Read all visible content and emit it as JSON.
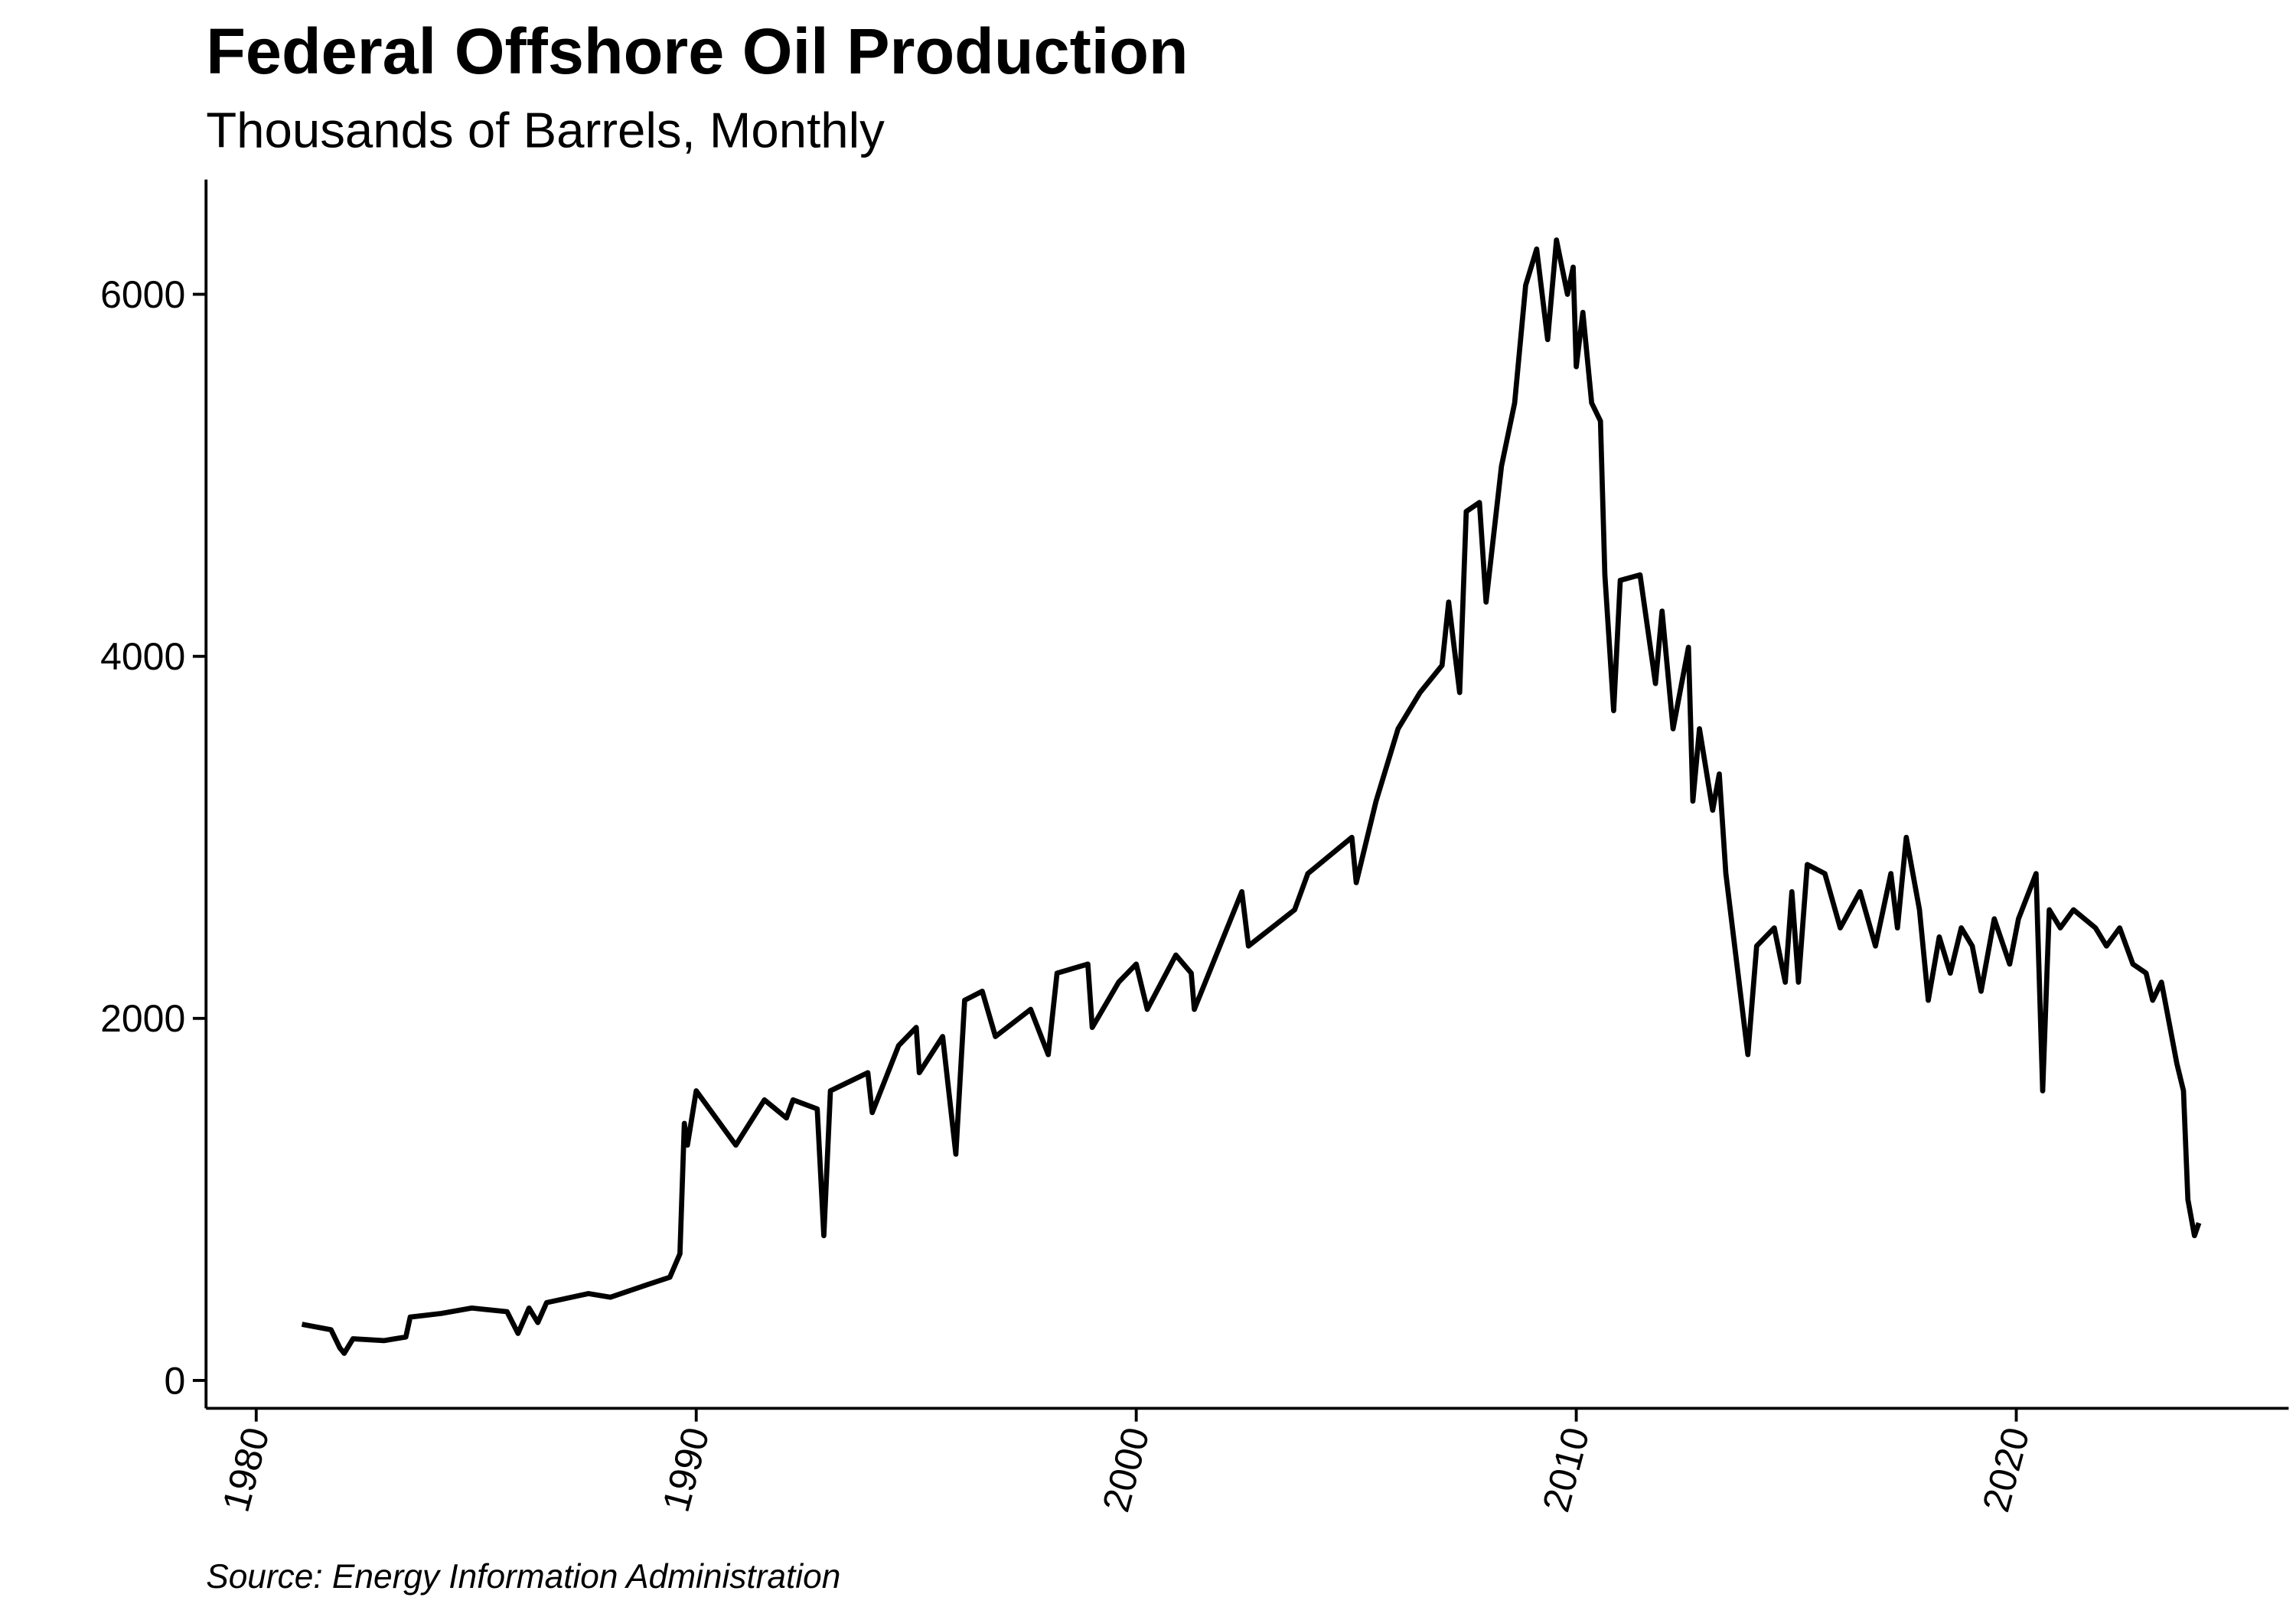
{
  "chart_data": {
    "type": "line",
    "title": "Federal Offshore Oil Production",
    "subtitle": "Thousands of Barrels, Monthly",
    "source": "Source: Energy Information Administration",
    "color": "#000000",
    "x": [
      1981.04,
      1981.7,
      1981.9,
      1982.0,
      1982.2,
      1982.9,
      1983.4,
      1983.5,
      1984.2,
      1984.9,
      1985.7,
      1985.95,
      1986.2,
      1986.4,
      1986.6,
      1987.55,
      1988.05,
      1988.9,
      1989.4,
      1989.63,
      1989.73,
      1989.8,
      1990.0,
      1990.9,
      1991.55,
      1992.05,
      1992.2,
      1992.75,
      1992.9,
      1993.05,
      1993.9,
      1994.0,
      1994.6,
      1995.0,
      1995.07,
      1995.6,
      1995.9,
      1996.1,
      1996.5,
      1996.8,
      1997.6,
      1998.0,
      1998.2,
      1998.9,
      1999.0,
      1999.6,
      2000.0,
      2000.25,
      2000.9,
      2001.25,
      2001.32,
      2002.4,
      2002.55,
      2003.6,
      2003.9,
      2004.9,
      2005.0,
      2005.45,
      2005.95,
      2006.45,
      2006.95,
      2007.1,
      2007.35,
      2007.5,
      2007.8,
      2007.95,
      2008.3,
      2008.6,
      2008.85,
      2009.1,
      2009.35,
      2009.55,
      2009.8,
      2009.93,
      2010.0,
      2010.15,
      2010.35,
      2010.55,
      2010.65,
      2010.85,
      2011.0,
      2011.45,
      2011.8,
      2011.95,
      2012.2,
      2012.55,
      2012.65,
      2012.8,
      2013.1,
      2013.25,
      2013.4,
      2013.65,
      2013.9,
      2014.1,
      2014.5,
      2014.75,
      2014.9,
      2015.05,
      2015.25,
      2015.65,
      2016.0,
      2016.45,
      2016.8,
      2017.15,
      2017.3,
      2017.5,
      2017.8,
      2018.0,
      2018.25,
      2018.5,
      2018.75,
      2019.0,
      2019.2,
      2019.5,
      2019.85,
      2020.05,
      2020.45,
      2020.6,
      2020.75,
      2021.0,
      2021.3,
      2021.8,
      2022.05,
      2022.35,
      2022.65,
      2022.95,
      2023.1,
      2023.3,
      2023.65,
      2023.8,
      2023.9,
      2024.05,
      2024.15
    ],
    "values": [
      310,
      280,
      180,
      150,
      230,
      220,
      240,
      350,
      370,
      400,
      380,
      260,
      400,
      320,
      430,
      480,
      460,
      530,
      570,
      700,
      1420,
      1300,
      1600,
      1300,
      1550,
      1450,
      1550,
      1500,
      800,
      1600,
      1700,
      1480,
      1850,
      1950,
      1700,
      1900,
      1250,
      2100,
      2150,
      1900,
      2050,
      1800,
      2250,
      2300,
      1950,
      2200,
      2300,
      2050,
      2350,
      2250,
      2050,
      2700,
      2400,
      2600,
      2800,
      3000,
      2750,
      3200,
      3600,
      3800,
      3950,
      4300,
      3800,
      4800,
      4850,
      4300,
      5050,
      5400,
      6050,
      6250,
      5750,
      6300,
      6000,
      6150,
      5600,
      5900,
      5400,
      5300,
      4450,
      3700,
      4420,
      4450,
      3850,
      4250,
      3600,
      4050,
      3200,
      3600,
      3150,
      3350,
      2800,
      2300,
      1800,
      2400,
      2500,
      2200,
      2700,
      2200,
      2850,
      2800,
      2500,
      2700,
      2400,
      2800,
      2500,
      3000,
      2600,
      2100,
      2450,
      2250,
      2500,
      2400,
      2150,
      2550,
      2300,
      2550,
      2800,
      1600,
      2600,
      2500,
      2600,
      2500,
      2400,
      2500,
      2300,
      2250,
      2100,
      2200,
      1750,
      1600,
      1000,
      800,
      870
    ],
    "xlim": [
      1978.86,
      2026.19
    ],
    "ylim": [
      -154,
      6634
    ],
    "xticks": [
      1980,
      1990,
      2000,
      2010,
      2020
    ],
    "yticks": [
      0,
      2000,
      4000,
      6000
    ]
  }
}
